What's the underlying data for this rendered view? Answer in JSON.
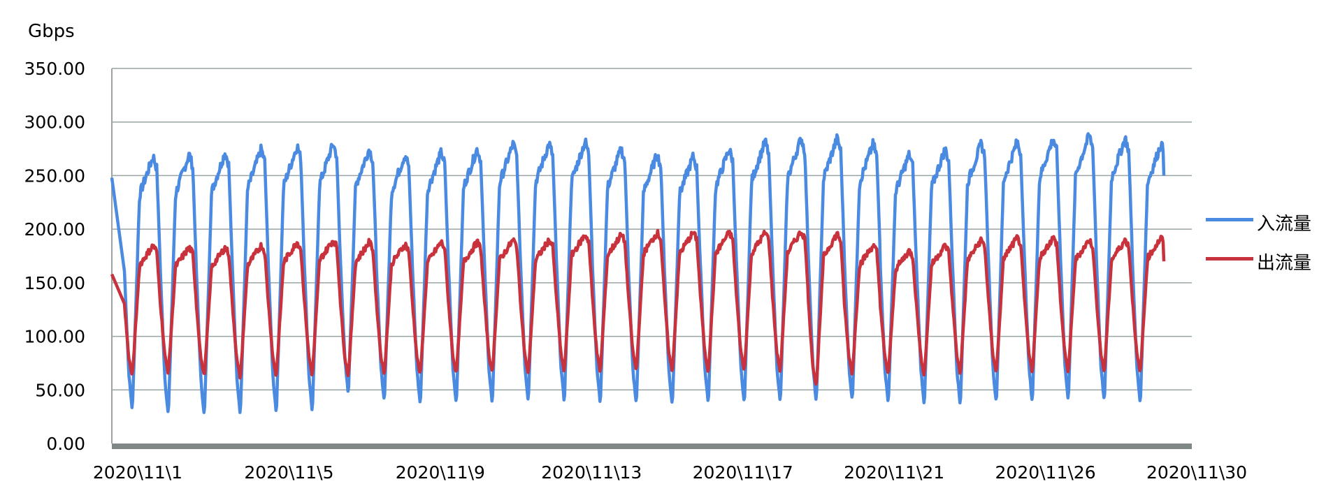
{
  "chart_data": {
    "type": "line",
    "ylabel": "Gbps",
    "ylim": [
      0,
      350
    ],
    "yticks": [
      "0.00",
      "50.00",
      "100.00",
      "150.00",
      "200.00",
      "250.00",
      "300.00",
      "350.00"
    ],
    "xticks": [
      "2020\\11\\1",
      "2020\\11\\5",
      "2020\\11\\9",
      "2020\\11\\13",
      "2020\\11\\17",
      "2020\\11\\21",
      "2020\\11\\26",
      "2020\\11\\30"
    ],
    "x_start": "2020-11-01",
    "x_end": "2020-12-01",
    "grid": true,
    "legend_position": "right",
    "series": [
      {
        "name": "入流量",
        "color": "#4a8ae0",
        "daily_peak": [
          268,
          270,
          272,
          275,
          278,
          280,
          275,
          270,
          272,
          275,
          280,
          280,
          282,
          275,
          270,
          268,
          275,
          282,
          285,
          285,
          280,
          270,
          275,
          280,
          282,
          285,
          288,
          285,
          280,
          280
        ],
        "daily_trough": [
          30,
          25,
          24,
          26,
          27,
          28,
          45,
          38,
          35,
          36,
          35,
          38,
          37,
          36,
          35,
          34,
          36,
          35,
          36,
          37,
          38,
          36,
          35,
          34,
          36,
          37,
          38,
          37,
          36,
          35
        ],
        "end_value": 250
      },
      {
        "name": "出流量",
        "color": "#c8323c",
        "daily_peak": [
          185,
          183,
          183,
          185,
          188,
          190,
          188,
          186,
          188,
          188,
          190,
          190,
          195,
          195,
          197,
          197,
          197,
          197,
          198,
          196,
          185,
          180,
          185,
          190,
          192,
          192,
          190,
          190,
          192,
          192
        ],
        "daily_trough": [
          62,
          65,
          62,
          60,
          62,
          63,
          62,
          64,
          63,
          64,
          65,
          64,
          66,
          66,
          67,
          66,
          66,
          67,
          66,
          52,
          64,
          64,
          63,
          64,
          65,
          66,
          66,
          66,
          65,
          70
        ],
        "end_value": 170
      }
    ]
  }
}
